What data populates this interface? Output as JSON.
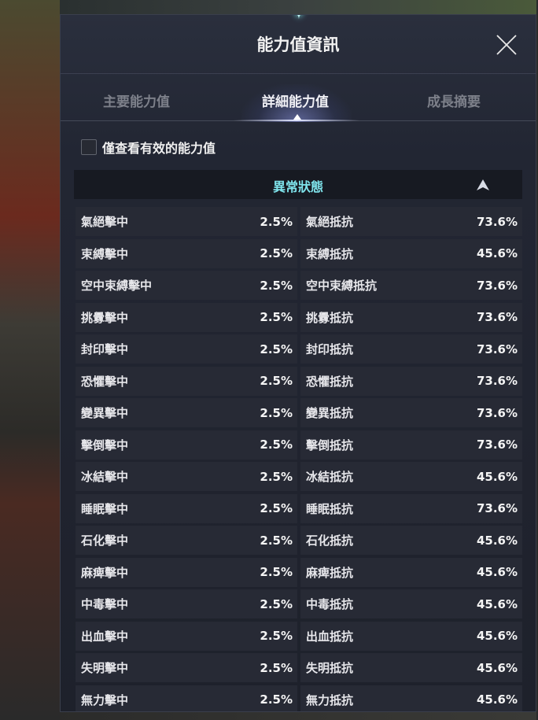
{
  "dialog": {
    "title": "能力值資訊"
  },
  "tabs": [
    {
      "label": "主要能力值",
      "active": false
    },
    {
      "label": "詳細能力值",
      "active": true
    },
    {
      "label": "成長摘要",
      "active": false
    }
  ],
  "filter": {
    "label": "僅查看有效的能力值",
    "checked": false
  },
  "section": {
    "title": "異常狀態",
    "expanded": true,
    "accent": "#7fe4ec"
  },
  "rows": [
    {
      "hit_label": "氣絕擊中",
      "hit": "2.5%",
      "res_label": "氣絕抵抗",
      "res": "73.6%"
    },
    {
      "hit_label": "束縛擊中",
      "hit": "2.5%",
      "res_label": "束縛抵抗",
      "res": "45.6%"
    },
    {
      "hit_label": "空中束縛擊中",
      "hit": "2.5%",
      "res_label": "空中束縛抵抗",
      "res": "73.6%"
    },
    {
      "hit_label": "挑釁擊中",
      "hit": "2.5%",
      "res_label": "挑釁抵抗",
      "res": "73.6%"
    },
    {
      "hit_label": "封印擊中",
      "hit": "2.5%",
      "res_label": "封印抵抗",
      "res": "73.6%"
    },
    {
      "hit_label": "恐懼擊中",
      "hit": "2.5%",
      "res_label": "恐懼抵抗",
      "res": "73.6%"
    },
    {
      "hit_label": "變異擊中",
      "hit": "2.5%",
      "res_label": "變異抵抗",
      "res": "73.6%"
    },
    {
      "hit_label": "擊倒擊中",
      "hit": "2.5%",
      "res_label": "擊倒抵抗",
      "res": "73.6%"
    },
    {
      "hit_label": "冰結擊中",
      "hit": "2.5%",
      "res_label": "冰結抵抗",
      "res": "45.6%"
    },
    {
      "hit_label": "睡眠擊中",
      "hit": "2.5%",
      "res_label": "睡眠抵抗",
      "res": "73.6%"
    },
    {
      "hit_label": "石化擊中",
      "hit": "2.5%",
      "res_label": "石化抵抗",
      "res": "45.6%"
    },
    {
      "hit_label": "麻痺擊中",
      "hit": "2.5%",
      "res_label": "麻痺抵抗",
      "res": "45.6%"
    },
    {
      "hit_label": "中毒擊中",
      "hit": "2.5%",
      "res_label": "中毒抵抗",
      "res": "45.6%"
    },
    {
      "hit_label": "出血擊中",
      "hit": "2.5%",
      "res_label": "出血抵抗",
      "res": "45.6%"
    },
    {
      "hit_label": "失明擊中",
      "hit": "2.5%",
      "res_label": "失明抵抗",
      "res": "45.6%"
    },
    {
      "hit_label": "無力擊中",
      "hit": "2.5%",
      "res_label": "無力抵抗",
      "res": "45.6%"
    }
  ]
}
